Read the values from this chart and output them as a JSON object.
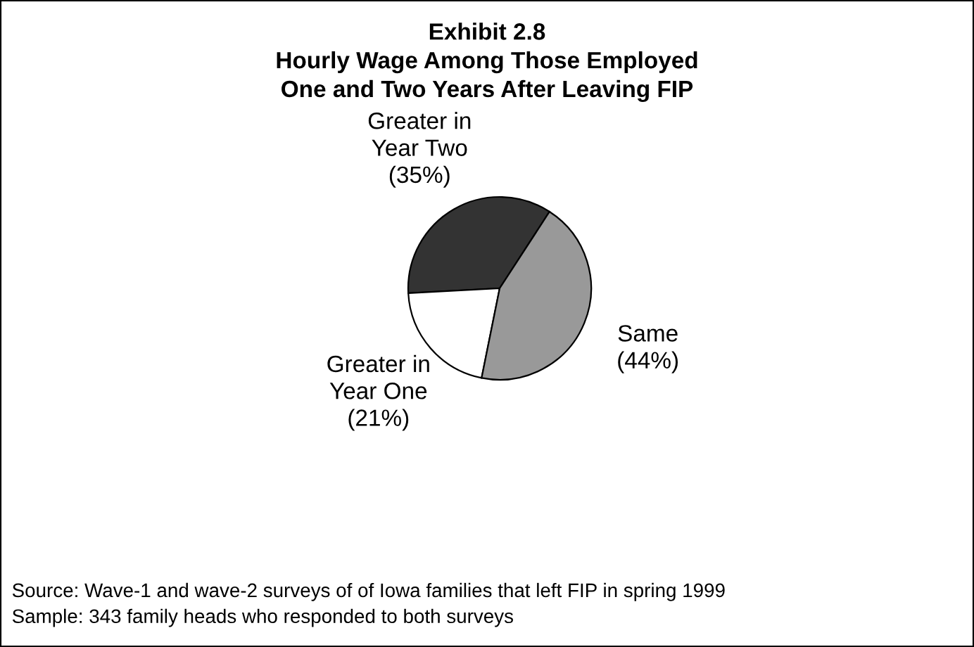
{
  "chart_data": {
    "type": "pie",
    "title": "Exhibit 2.8\nHourly Wage Among Those Employed\nOne and Two Years After Leaving FIP",
    "categories": [
      "Greater in\nYear Two",
      "Greater in\nYear One",
      "Same"
    ],
    "values": [
      35,
      21,
      44
    ],
    "value_labels": [
      "(35%)",
      "(21%)",
      "(44%)"
    ],
    "colors": [
      "#333333",
      "#ffffff",
      "#999999"
    ],
    "annotations": [
      "Source: Wave-1 and wave-2 surveys of of Iowa families that left FIP in spring 1999",
      "Sample: 343 family heads who responded to both surveys"
    ]
  }
}
